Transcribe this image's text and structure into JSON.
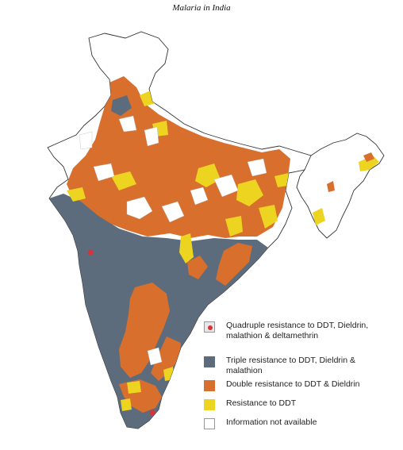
{
  "title": "Malaria in India",
  "colors": {
    "quadruple": "#d8323b",
    "triple": "#5d6c7d",
    "double": "#d96f2c",
    "ddt": "#ecd421",
    "na": "#ffffff",
    "border": "#333333"
  },
  "legend": {
    "items": [
      {
        "key": "quadruple",
        "label_1": "Quadruple resistance to DDT, Dieldrin,",
        "label_2": "malathion & deltamethrin"
      },
      {
        "key": "triple",
        "label_1": "Triple resistance to DDT, Dieldrin &",
        "label_2": "malathion"
      },
      {
        "key": "double",
        "label_1": "Double resistance to DDT & Dieldrin",
        "label_2": ""
      },
      {
        "key": "ddt",
        "label_1": "Resistance to DDT",
        "label_2": ""
      },
      {
        "key": "na",
        "label_1": "Information not available",
        "label_2": ""
      }
    ]
  }
}
